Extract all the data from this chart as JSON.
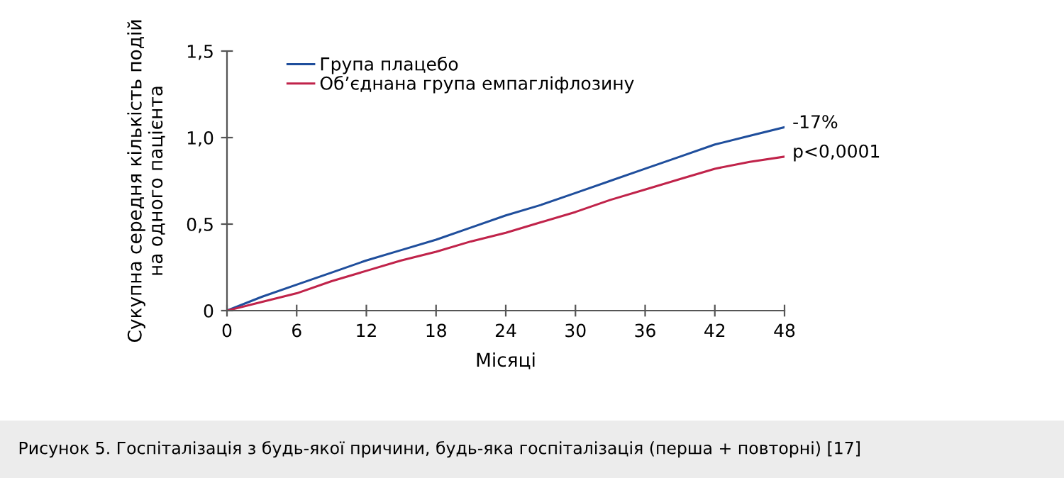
{
  "chart_data": {
    "type": "line",
    "xlabel": "Місяці",
    "ylabel": "Сукупна середня кількість подій\nна одного пацієнта",
    "x": [
      0,
      3,
      6,
      9,
      12,
      15,
      18,
      21,
      24,
      27,
      30,
      33,
      36,
      39,
      42,
      45,
      48
    ],
    "series": [
      {
        "name": "Група плацебо",
        "color": "#1f4e9c",
        "values": [
          0,
          0.08,
          0.15,
          0.22,
          0.29,
          0.35,
          0.41,
          0.48,
          0.55,
          0.61,
          0.68,
          0.75,
          0.82,
          0.89,
          0.96,
          1.01,
          1.06
        ]
      },
      {
        "name": "Об’єднана група емпагліфлозину",
        "color": "#c0234a",
        "values": [
          0,
          0.05,
          0.1,
          0.17,
          0.23,
          0.29,
          0.34,
          0.4,
          0.45,
          0.51,
          0.57,
          0.64,
          0.7,
          0.76,
          0.82,
          0.86,
          0.89
        ]
      }
    ],
    "xlim": [
      0,
      48
    ],
    "xticks": [
      0,
      6,
      12,
      18,
      24,
      30,
      36,
      42,
      48
    ],
    "ylim": [
      0,
      1.5
    ],
    "yticks": [
      {
        "value": 0,
        "label": "0"
      },
      {
        "value": 0.5,
        "label": "0,5"
      },
      {
        "value": 1.0,
        "label": "1,0"
      },
      {
        "value": 1.5,
        "label": "1,5"
      }
    ],
    "grid": false,
    "legend": "top left",
    "annotations": [
      {
        "text": "-17%",
        "x": 48,
        "y": 1.06
      },
      {
        "text": "p<0,0001",
        "x": 48,
        "y": 0.89
      },
      "Рисунок 5. Госпіталізація з будь-якої причини, будь-яка госпіталізація (перша + повторні) [17]"
    ]
  }
}
